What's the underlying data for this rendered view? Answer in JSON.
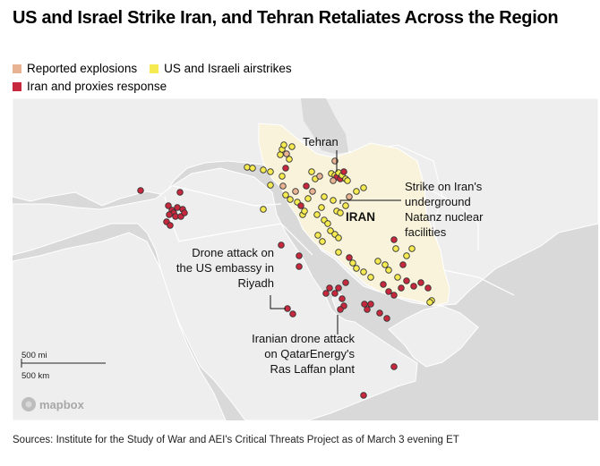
{
  "title": "US and Israel Strike Iran, and Tehran Retaliates Across the Region",
  "legend": [
    {
      "label": "Reported explosions",
      "color": "#e8b393"
    },
    {
      "label": "US and Israeli airstrikes",
      "color": "#f5ea4f"
    },
    {
      "label": "Iran and proxies response",
      "color": "#c8283e"
    }
  ],
  "annotations": {
    "tehran": "Tehran",
    "iran": "IRAN",
    "natanz": [
      "Strike on Iran's",
      "underground",
      "Natanz nuclear",
      "facilities"
    ],
    "riyadh": [
      "Drone attack on",
      "the US embassy in",
      "Riyadh"
    ],
    "qatar": [
      "Iranian drone attack",
      "on QatarEnergy's",
      "Ras Laffan plant"
    ]
  },
  "scale": {
    "miles": "500 mi",
    "km": "500 km"
  },
  "attribution": "mapbox",
  "source": "Sources: Institute for the Study of War and AEI's Critical Threats Project as of March 3 evening ET",
  "colors": {
    "water": "#d9d9d9",
    "land": "#eeeeee",
    "iran": "#f8f3da",
    "border": "#ffffff",
    "dot_stroke": "#333333"
  }
}
